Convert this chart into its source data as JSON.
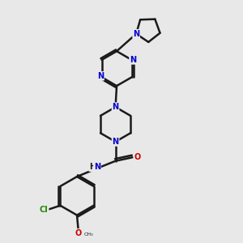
{
  "bg": "#e8e8e8",
  "bc": "#1a1a1a",
  "nc": "#0000cc",
  "oc": "#cc0000",
  "clc": "#228800",
  "lw": 1.8,
  "fs": 7.0,
  "xlim": [
    0,
    10
  ],
  "ylim": [
    0,
    10
  ]
}
